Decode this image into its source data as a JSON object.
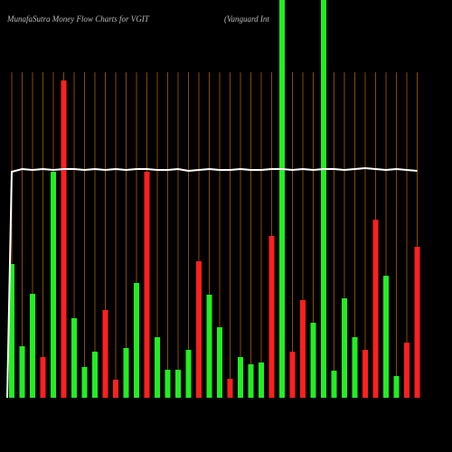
{
  "chart_data": {
    "type": "bar",
    "title": "MunafaSutra  Money Flow  Charts for VGIT",
    "subtitle": "(Vanguard Int",
    "ylim": [
      0,
      440
    ],
    "values": [
      148,
      57,
      115,
      45,
      250,
      351,
      88,
      34,
      51,
      97,
      20,
      55,
      127,
      250,
      67,
      31,
      31,
      53,
      151,
      114,
      78,
      21,
      45,
      37,
      39,
      179,
      440,
      51,
      108,
      83,
      440,
      30,
      110,
      67,
      53,
      197,
      135,
      24,
      61,
      167
    ],
    "colors": [
      "#22ee22",
      "#22ee22",
      "#22ee22",
      "#ff2020",
      "#22ee22",
      "#ff2020",
      "#22ee22",
      "#22ee22",
      "#22ee22",
      "#ff2020",
      "#ff2020",
      "#22ee22",
      "#22ee22",
      "#ff2020",
      "#22ee22",
      "#22ee22",
      "#22ee22",
      "#22ee22",
      "#ff2020",
      "#22ee22",
      "#22ee22",
      "#ff2020",
      "#22ee22",
      "#22ee22",
      "#22ee22",
      "#ff2020",
      "#22ee22",
      "#ff2020",
      "#ff2020",
      "#22ee22",
      "#22ee22",
      "#22ee22",
      "#22ee22",
      "#22ee22",
      "#ff2020",
      "#ff2020",
      "#22ee22",
      "#22ee22",
      "#ff2020",
      "#ff2020"
    ],
    "line": {
      "color": "#ffffff",
      "values": [
        250,
        253,
        252,
        253,
        252,
        253,
        253,
        252,
        253,
        252,
        253,
        252,
        253,
        253,
        252,
        252,
        253,
        251,
        252,
        253,
        252,
        252,
        253,
        252,
        252,
        253,
        253,
        252,
        253,
        252,
        253,
        253,
        252,
        253,
        254,
        253,
        252,
        253,
        252,
        251
      ]
    }
  }
}
